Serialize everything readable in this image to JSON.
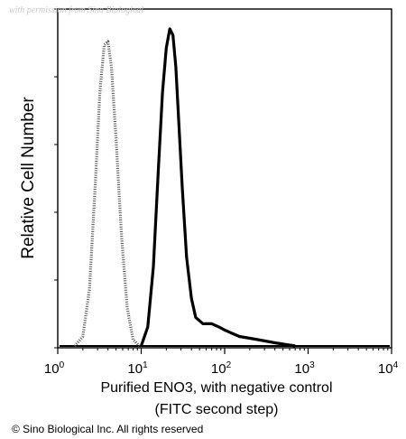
{
  "watermark": "with permission from Sino Biological",
  "copyright": "© Sino Biological Inc. All rights reserved",
  "chart_data": {
    "type": "area",
    "title": "",
    "ylabel": "Relative Cell Number",
    "xlabel": "Purified ENO3, with negative control",
    "xlabel_line2": "(FITC second step)",
    "x_scale": "log",
    "xlim": [
      1,
      10000
    ],
    "ylim": [
      0,
      100
    ],
    "x_tick_labels": [
      {
        "value": 1,
        "base": "10",
        "exp": "0"
      },
      {
        "value": 10,
        "base": "10",
        "exp": "1"
      },
      {
        "value": 100,
        "base": "10",
        "exp": "2"
      },
      {
        "value": 1000,
        "base": "10",
        "exp": "3"
      },
      {
        "value": 10000,
        "base": "10",
        "exp": "4"
      }
    ],
    "grid": false,
    "legend": "none",
    "series": [
      {
        "role": "negative control",
        "style": "dotted",
        "color": "#555555",
        "points": [
          [
            1.6,
            0
          ],
          [
            2.0,
            3
          ],
          [
            2.4,
            18
          ],
          [
            2.8,
            50
          ],
          [
            3.2,
            80
          ],
          [
            3.6,
            95
          ],
          [
            4.0,
            96
          ],
          [
            4.4,
            88
          ],
          [
            5.0,
            65
          ],
          [
            5.8,
            35
          ],
          [
            6.8,
            12
          ],
          [
            8.0,
            2
          ],
          [
            9.5,
            0
          ]
        ]
      },
      {
        "role": "ENO3",
        "style": "solid",
        "color": "#000000",
        "points": [
          [
            10,
            0
          ],
          [
            12,
            6
          ],
          [
            14,
            25
          ],
          [
            16,
            55
          ],
          [
            18,
            80
          ],
          [
            20,
            94
          ],
          [
            22,
            100
          ],
          [
            24,
            98
          ],
          [
            26,
            88
          ],
          [
            28,
            72
          ],
          [
            31,
            50
          ],
          [
            35,
            28
          ],
          [
            40,
            15
          ],
          [
            45,
            9
          ],
          [
            55,
            7
          ],
          [
            70,
            7
          ],
          [
            85,
            6
          ],
          [
            100,
            5
          ],
          [
            150,
            3
          ],
          [
            250,
            2
          ],
          [
            400,
            1
          ],
          [
            700,
            0
          ]
        ]
      }
    ]
  }
}
